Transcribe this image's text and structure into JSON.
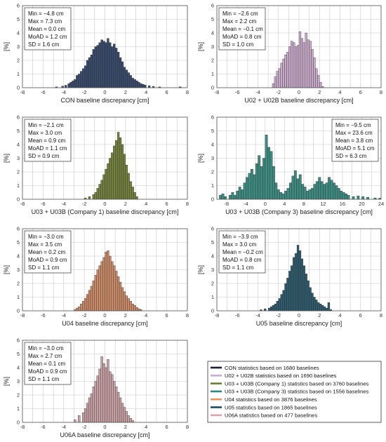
{
  "chart_data": [
    {
      "type": "bar",
      "xlabel": "CON baseline discrepancy [cm]",
      "ylabel": "[%]",
      "xlim": [
        -8,
        8
      ],
      "ylim": [
        0,
        6
      ],
      "xticks": [
        -8,
        -6,
        -4,
        -2,
        0,
        2,
        4,
        6,
        8
      ],
      "yticks": [
        0,
        1,
        2,
        3,
        4,
        5,
        6
      ],
      "color": "#3a4a6b",
      "stats": [
        "Min = −4.8 cm",
        "Max = 7.3 cm",
        "Mean = 0.0 cm",
        "MoAD = 1.2 cm",
        "SD = 1.6 cm"
      ],
      "stats_pos": "left",
      "bin_width": 0.2,
      "bins": [
        [
          -4.8,
          0.06
        ],
        [
          -4.2,
          0.12
        ],
        [
          -3.9,
          0.18
        ],
        [
          -3.6,
          0.3
        ],
        [
          -3.4,
          0.4
        ],
        [
          -3.2,
          0.5
        ],
        [
          -3.0,
          0.6
        ],
        [
          -2.8,
          0.9
        ],
        [
          -2.6,
          1.0
        ],
        [
          -2.4,
          1.2
        ],
        [
          -2.2,
          1.4
        ],
        [
          -2.0,
          1.6
        ],
        [
          -1.8,
          2.0
        ],
        [
          -1.6,
          2.2
        ],
        [
          -1.4,
          2.4
        ],
        [
          -1.2,
          2.8
        ],
        [
          -1.0,
          3.0
        ],
        [
          -0.8,
          3.1
        ],
        [
          -0.6,
          3.3
        ],
        [
          -0.4,
          3.5
        ],
        [
          -0.2,
          3.4
        ],
        [
          0.0,
          3.3
        ],
        [
          0.2,
          3.6
        ],
        [
          0.4,
          3.3
        ],
        [
          0.6,
          3.0
        ],
        [
          0.8,
          3.2
        ],
        [
          1.0,
          2.9
        ],
        [
          1.2,
          2.6
        ],
        [
          1.4,
          2.2
        ],
        [
          1.6,
          1.9
        ],
        [
          1.8,
          1.5
        ],
        [
          2.0,
          1.3
        ],
        [
          2.2,
          1.1
        ],
        [
          2.4,
          0.9
        ],
        [
          2.6,
          0.7
        ],
        [
          2.8,
          0.6
        ],
        [
          3.0,
          0.5
        ],
        [
          3.2,
          0.4
        ],
        [
          3.4,
          0.3
        ],
        [
          3.6,
          0.25
        ],
        [
          3.8,
          0.2
        ],
        [
          4.2,
          0.15
        ],
        [
          4.6,
          0.1
        ],
        [
          5.2,
          0.06
        ],
        [
          7.2,
          0.06
        ]
      ]
    },
    {
      "type": "bar",
      "xlabel": "U02 + U02B baseline discrepancy [cm]",
      "ylabel": "[%]",
      "xlim": [
        -8,
        8
      ],
      "ylim": [
        0,
        6
      ],
      "xticks": [
        -8,
        -6,
        -4,
        -2,
        0,
        2,
        4,
        6,
        8
      ],
      "yticks": [
        0,
        1,
        2,
        3,
        4,
        5,
        6
      ],
      "color": "#c7a9c8",
      "stats": [
        "Min = −2.6 cm",
        "Max = 2.2 cm",
        "Mean = −0.1 cm",
        "MoAD = 0.8 cm",
        "SD = 1.0 cm"
      ],
      "stats_pos": "left",
      "bin_width": 0.2,
      "bins": [
        [
          -2.6,
          0.3
        ],
        [
          -2.4,
          0.8
        ],
        [
          -2.2,
          1.2
        ],
        [
          -2.0,
          1.4
        ],
        [
          -1.8,
          1.8
        ],
        [
          -1.6,
          2.1
        ],
        [
          -1.4,
          2.4
        ],
        [
          -1.2,
          2.6
        ],
        [
          -1.0,
          3.0
        ],
        [
          -0.8,
          3.4
        ],
        [
          -0.6,
          3.3
        ],
        [
          -0.4,
          3.0
        ],
        [
          -0.2,
          3.1
        ],
        [
          0.0,
          4.1
        ],
        [
          0.2,
          3.6
        ],
        [
          0.4,
          3.3
        ],
        [
          0.6,
          4.0
        ],
        [
          0.8,
          3.5
        ],
        [
          1.0,
          3.4
        ],
        [
          1.2,
          2.8
        ],
        [
          1.4,
          2.2
        ],
        [
          1.6,
          1.4
        ],
        [
          1.8,
          0.9
        ],
        [
          2.0,
          0.4
        ],
        [
          2.2,
          0.1
        ]
      ]
    },
    {
      "type": "bar",
      "xlabel": "U03 + U03B (Company 1) baseline discrepancy [cm]",
      "ylabel": "[%]",
      "xlim": [
        -8,
        8
      ],
      "ylim": [
        0,
        6
      ],
      "xticks": [
        -8,
        -6,
        -4,
        -2,
        0,
        2,
        4,
        6,
        8
      ],
      "yticks": [
        0,
        1,
        2,
        3,
        4,
        5,
        6
      ],
      "color": "#74803f",
      "stats": [
        "Min = −2.1 cm",
        "Max = 3.0 cm",
        "Mean = 0.9 cm",
        "MoAD = 1.1 cm",
        "SD = 0.9 cm"
      ],
      "stats_pos": "left",
      "bin_width": 0.2,
      "bins": [
        [
          -2.0,
          0.1
        ],
        [
          -1.6,
          0.2
        ],
        [
          -1.2,
          0.35
        ],
        [
          -1.0,
          0.5
        ],
        [
          -0.8,
          0.8
        ],
        [
          -0.6,
          1.1
        ],
        [
          -0.4,
          1.4
        ],
        [
          -0.2,
          1.8
        ],
        [
          0.0,
          2.2
        ],
        [
          0.2,
          2.6
        ],
        [
          0.4,
          3.0
        ],
        [
          0.6,
          3.4
        ],
        [
          0.8,
          3.9
        ],
        [
          1.0,
          4.3
        ],
        [
          1.2,
          4.9
        ],
        [
          1.4,
          4.5
        ],
        [
          1.6,
          4.0
        ],
        [
          1.8,
          3.3
        ],
        [
          2.0,
          2.5
        ],
        [
          2.2,
          1.9
        ],
        [
          2.4,
          1.3
        ],
        [
          2.6,
          0.9
        ],
        [
          2.8,
          0.5
        ],
        [
          3.0,
          0.2
        ]
      ]
    },
    {
      "type": "bar",
      "xlabel": "U03 + U03B (Company 3) baseline discrepancy [cm]",
      "ylabel": "[%]",
      "xlim": [
        -10,
        24
      ],
      "ylim": [
        0,
        6
      ],
      "xticks": [
        -8,
        -4,
        0,
        4,
        8,
        12,
        16,
        20,
        24
      ],
      "yticks": [
        0,
        1,
        2,
        3,
        4,
        5,
        6
      ],
      "color": "#3f8a80",
      "stats": [
        "Min = −9.5 cm",
        "Max = 23.6 cm",
        "Mean = 3.8 cm",
        "MoAD = 5.1 cm",
        "SD = 6.3 cm"
      ],
      "stats_pos": "right",
      "bin_width": 0.5,
      "bins": [
        [
          -9.5,
          0.3
        ],
        [
          -9,
          0.4
        ],
        [
          -8.5,
          0.2
        ],
        [
          -7.5,
          0.3
        ],
        [
          -7,
          0.5
        ],
        [
          -6.5,
          0.3
        ],
        [
          -6,
          0.6
        ],
        [
          -5.5,
          0.9
        ],
        [
          -5,
          0.7
        ],
        [
          -4.5,
          1.2
        ],
        [
          -4,
          1.6
        ],
        [
          -3.5,
          1.9
        ],
        [
          -3,
          2.2
        ],
        [
          -2.5,
          1.8
        ],
        [
          -2,
          2.6
        ],
        [
          -1.5,
          3.2
        ],
        [
          -1,
          2.4
        ],
        [
          -0.5,
          3.0
        ],
        [
          0,
          4.7
        ],
        [
          0.5,
          3.8
        ],
        [
          1,
          3.5
        ],
        [
          1.5,
          2.4
        ],
        [
          2,
          1.2
        ],
        [
          2.5,
          0.7
        ],
        [
          3,
          0.5
        ],
        [
          3.5,
          0.4
        ],
        [
          4,
          0.6
        ],
        [
          4.5,
          0.8
        ],
        [
          5,
          1.2
        ],
        [
          5.5,
          1.7
        ],
        [
          6,
          2.1
        ],
        [
          6.5,
          1.5
        ],
        [
          7,
          1.8
        ],
        [
          7.5,
          1.1
        ],
        [
          8,
          0.9
        ],
        [
          8.5,
          0.6
        ],
        [
          9,
          0.7
        ],
        [
          9.5,
          0.8
        ],
        [
          10,
          1.1
        ],
        [
          10.5,
          1.3
        ],
        [
          11,
          1.6
        ],
        [
          11.5,
          1.3
        ],
        [
          12,
          1.1
        ],
        [
          12.5,
          1.2
        ],
        [
          13,
          1.6
        ],
        [
          13.5,
          1.4
        ],
        [
          14,
          1.2
        ],
        [
          14.5,
          1.0
        ],
        [
          15,
          0.8
        ],
        [
          15.5,
          0.6
        ],
        [
          16,
          0.5
        ],
        [
          16.5,
          0.4
        ],
        [
          17,
          0.3
        ],
        [
          18,
          0.2
        ],
        [
          19,
          0.25
        ],
        [
          20,
          0.2
        ],
        [
          21,
          0.15
        ],
        [
          22.5,
          0.1
        ],
        [
          23.5,
          0.08
        ]
      ]
    },
    {
      "type": "bar",
      "xlabel": "U04 baseline discrepancy [cm]",
      "ylabel": "[%]",
      "xlim": [
        -8,
        8
      ],
      "ylim": [
        0,
        6
      ],
      "xticks": [
        -8,
        -6,
        -4,
        -2,
        0,
        2,
        4,
        6,
        8
      ],
      "yticks": [
        0,
        1,
        2,
        3,
        4,
        5,
        6
      ],
      "color": "#c98a6a",
      "stats": [
        "Min = −3.0 cm",
        "Max = 3.5 cm",
        "Mean = 0.2 cm",
        "MoAD = 0.9 cm",
        "SD = 1.1 cm"
      ],
      "stats_pos": "left",
      "bin_width": 0.2,
      "bins": [
        [
          -3.0,
          0.1
        ],
        [
          -2.8,
          0.2
        ],
        [
          -2.6,
          0.3
        ],
        [
          -2.4,
          0.5
        ],
        [
          -2.2,
          0.7
        ],
        [
          -2.0,
          0.9
        ],
        [
          -1.8,
          1.2
        ],
        [
          -1.6,
          1.5
        ],
        [
          -1.4,
          1.8
        ],
        [
          -1.2,
          2.2
        ],
        [
          -1.0,
          2.6
        ],
        [
          -0.8,
          3.0
        ],
        [
          -0.6,
          3.3
        ],
        [
          -0.4,
          3.6
        ],
        [
          -0.2,
          3.9
        ],
        [
          0.0,
          4.3
        ],
        [
          0.2,
          4.4
        ],
        [
          0.4,
          4.0
        ],
        [
          0.6,
          3.6
        ],
        [
          0.8,
          3.3
        ],
        [
          1.0,
          2.9
        ],
        [
          1.2,
          2.5
        ],
        [
          1.4,
          2.1
        ],
        [
          1.6,
          1.7
        ],
        [
          1.8,
          1.4
        ],
        [
          2.0,
          1.1
        ],
        [
          2.2,
          0.9
        ],
        [
          2.4,
          0.7
        ],
        [
          2.6,
          0.5
        ],
        [
          2.8,
          0.4
        ],
        [
          3.0,
          0.25
        ],
        [
          3.2,
          0.15
        ],
        [
          3.4,
          0.08
        ]
      ]
    },
    {
      "type": "bar",
      "xlabel": "U05 baseline discrepancy [cm]",
      "ylabel": "[%]",
      "xlim": [
        -8,
        8
      ],
      "ylim": [
        0,
        6
      ],
      "xticks": [
        -8,
        -6,
        -4,
        -2,
        0,
        2,
        4,
        6,
        8
      ],
      "yticks": [
        0,
        1,
        2,
        3,
        4,
        5,
        6
      ],
      "color": "#2f5a6b",
      "stats": [
        "Min = −3.9 cm",
        "Max = 3.0 cm",
        "Mean = −0.2 cm",
        "MoAD = 0.8 cm",
        "SD = 1.1 cm"
      ],
      "stats_pos": "left",
      "bin_width": 0.2,
      "bins": [
        [
          -3.8,
          0.08
        ],
        [
          -3.4,
          0.15
        ],
        [
          -3.0,
          0.2
        ],
        [
          -2.8,
          0.3
        ],
        [
          -2.6,
          0.4
        ],
        [
          -2.4,
          0.5
        ],
        [
          -2.2,
          0.7
        ],
        [
          -2.0,
          0.9
        ],
        [
          -1.8,
          1.2
        ],
        [
          -1.6,
          1.5
        ],
        [
          -1.4,
          2.0
        ],
        [
          -1.2,
          2.4
        ],
        [
          -1.0,
          2.9
        ],
        [
          -0.8,
          3.3
        ],
        [
          -0.6,
          3.9
        ],
        [
          -0.4,
          4.2
        ],
        [
          -0.2,
          4.8
        ],
        [
          0.0,
          4.4
        ],
        [
          0.2,
          3.8
        ],
        [
          0.4,
          3.3
        ],
        [
          0.6,
          2.7
        ],
        [
          0.8,
          2.2
        ],
        [
          1.0,
          1.7
        ],
        [
          1.2,
          1.3
        ],
        [
          1.4,
          1.0
        ],
        [
          1.6,
          0.8
        ],
        [
          1.8,
          0.6
        ],
        [
          2.0,
          0.5
        ],
        [
          2.2,
          0.4
        ],
        [
          2.4,
          0.3
        ],
        [
          2.6,
          0.2
        ],
        [
          2.8,
          0.6
        ],
        [
          3.0,
          0.1
        ]
      ]
    },
    {
      "type": "bar",
      "xlabel": "U06A baseline discrepancy [cm]",
      "ylabel": "[%]",
      "xlim": [
        -8,
        8
      ],
      "ylim": [
        0,
        6
      ],
      "xticks": [
        -8,
        -6,
        -4,
        -2,
        0,
        2,
        4,
        6,
        8
      ],
      "yticks": [
        0,
        1,
        2,
        3,
        4,
        5,
        6
      ],
      "color": "#c7a0a4",
      "stats": [
        "Min = −3.0 cm",
        "Max = 2.7 cm",
        "Mean = 0.1 cm",
        "MoAD = 0.9 cm",
        "SD = 1.1 cm"
      ],
      "stats_pos": "left",
      "bin_width": 0.2,
      "bins": [
        [
          -3.0,
          0.2
        ],
        [
          -2.6,
          0.5
        ],
        [
          -2.2,
          0.7
        ],
        [
          -2.0,
          1.0
        ],
        [
          -1.8,
          1.4
        ],
        [
          -1.6,
          1.8
        ],
        [
          -1.4,
          2.1
        ],
        [
          -1.2,
          2.6
        ],
        [
          -1.0,
          3.0
        ],
        [
          -0.8,
          3.4
        ],
        [
          -0.6,
          3.9
        ],
        [
          -0.4,
          4.8
        ],
        [
          -0.2,
          4.3
        ],
        [
          0.0,
          4.0
        ],
        [
          0.2,
          4.6
        ],
        [
          0.4,
          3.7
        ],
        [
          0.6,
          3.5
        ],
        [
          0.8,
          3.0
        ],
        [
          1.0,
          2.6
        ],
        [
          1.2,
          2.2
        ],
        [
          1.4,
          1.8
        ],
        [
          1.6,
          1.4
        ],
        [
          1.8,
          1.1
        ],
        [
          2.0,
          0.8
        ],
        [
          2.2,
          0.5
        ],
        [
          2.4,
          0.3
        ],
        [
          2.6,
          0.15
        ]
      ]
    }
  ],
  "legend": [
    {
      "label": "CON statistics based on 1680 baselines",
      "color": "#1b2236"
    },
    {
      "label": "U02 + U02B statistics based on 1690 baselines",
      "color": "#c8aed6"
    },
    {
      "label": "U03 + U03B (Company 1) statistics based on 3760 baselines",
      "color": "#6b7c35"
    },
    {
      "label": "U03 + U03B (Company 3) statistics based on 1556 baselines",
      "color": "#2a8a80"
    },
    {
      "label": "U04 statistics based on 3876 baselines",
      "color": "#e8935e"
    },
    {
      "label": "U05 statistics based on 1865 baselines",
      "color": "#1e4a64"
    },
    {
      "label": "U06A statistics based on 477 baselines",
      "color": "#e3a1ad"
    }
  ]
}
